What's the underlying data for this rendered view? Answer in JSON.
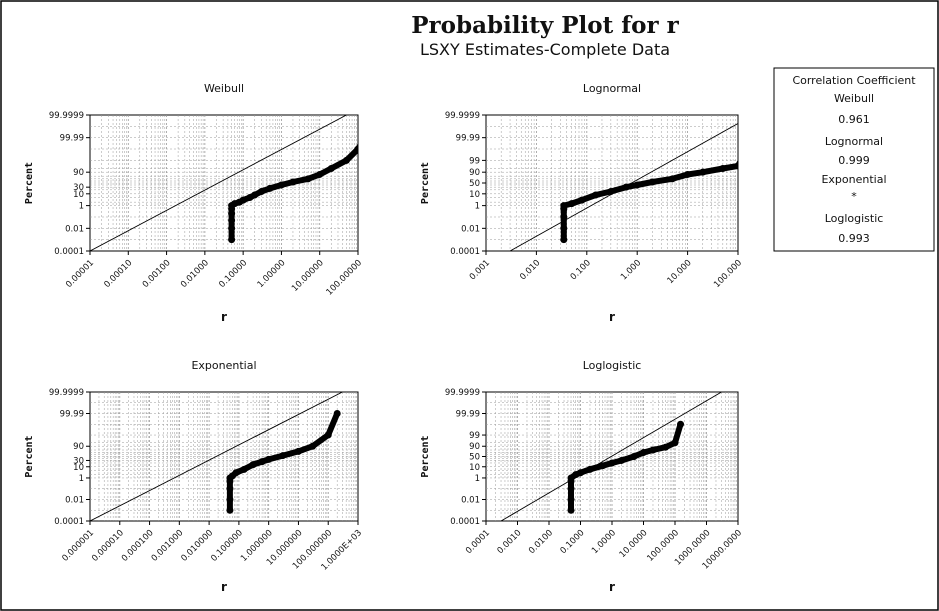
{
  "title": "Probability Plot for r",
  "subtitle": "LSXY Estimates-Complete Data",
  "legend": {
    "heading": "Correlation Coefficient",
    "entries": [
      {
        "name": "Weibull",
        "value": "0.961"
      },
      {
        "name": "Lognormal",
        "value": "0.999"
      },
      {
        "name": "Exponential",
        "value": "*"
      },
      {
        "name": "Loglogistic",
        "value": "0.993"
      }
    ]
  },
  "colors": {
    "points": "#000000",
    "line": "#000000",
    "grid": "#9a9a9a"
  },
  "chart_data": [
    {
      "type": "scatter",
      "title": "Weibull",
      "xlabel": "r",
      "ylabel": "Percent",
      "x_scale": "log",
      "xticks": [
        "0.00001",
        "0.00010",
        "0.00100",
        "0.01000",
        "0.10000",
        "1.00000",
        "10.00000",
        "100.00000"
      ],
      "yticks": [
        "0.0001",
        "0.01",
        "1",
        "10",
        "30",
        "90",
        "99.99",
        "99.9999"
      ],
      "fit_line": [
        [
          1e-05,
          0.0001
        ],
        [
          50,
          99.9999
        ]
      ],
      "points": [
        [
          0.05,
          0.001
        ],
        [
          0.05,
          0.01
        ],
        [
          0.05,
          0.05
        ],
        [
          0.05,
          0.2
        ],
        [
          0.05,
          0.5
        ],
        [
          0.05,
          1
        ],
        [
          0.06,
          1.5
        ],
        [
          0.08,
          2
        ],
        [
          0.1,
          3
        ],
        [
          0.15,
          5
        ],
        [
          0.2,
          8
        ],
        [
          0.3,
          15
        ],
        [
          0.5,
          25
        ],
        [
          1,
          40
        ],
        [
          2,
          55
        ],
        [
          5,
          70
        ],
        [
          10,
          85
        ],
        [
          20,
          95
        ],
        [
          50,
          99
        ],
        [
          100,
          99.9
        ],
        [
          150,
          99.99
        ]
      ]
    },
    {
      "type": "scatter",
      "title": "Lognormal",
      "xlabel": "r",
      "ylabel": "Percent",
      "x_scale": "log",
      "xticks": [
        "0.001",
        "0.010",
        "0.100",
        "1.000",
        "10.000",
        "100.000"
      ],
      "yticks": [
        "0.0001",
        "0.01",
        "1",
        "10",
        "50",
        "90",
        "99",
        "99.99",
        "99.9999"
      ],
      "fit_line": [
        [
          0.003,
          0.0001
        ],
        [
          200,
          99.9999
        ]
      ],
      "points": [
        [
          0.035,
          0.001
        ],
        [
          0.035,
          0.01
        ],
        [
          0.035,
          0.1
        ],
        [
          0.035,
          0.5
        ],
        [
          0.035,
          1
        ],
        [
          0.05,
          1.5
        ],
        [
          0.08,
          3
        ],
        [
          0.15,
          8
        ],
        [
          0.3,
          15
        ],
        [
          0.6,
          30
        ],
        [
          1,
          40
        ],
        [
          2,
          55
        ],
        [
          5,
          70
        ],
        [
          10,
          85
        ],
        [
          20,
          90
        ],
        [
          50,
          95
        ],
        [
          100,
          97
        ],
        [
          150,
          99.9
        ]
      ]
    },
    {
      "type": "scatter",
      "title": "Exponential",
      "xlabel": "r",
      "ylabel": "Percent",
      "x_scale": "log",
      "xticks": [
        "0.000001",
        "0.000010",
        "0.000100",
        "0.001000",
        "0.010000",
        "0.100000",
        "1.000000",
        "10.000000",
        "100.000000",
        "1.0000E+03"
      ],
      "yticks": [
        "0.0001",
        "0.01",
        "1",
        "10",
        "30",
        "90",
        "99.99",
        "99.9999"
      ],
      "fit_line": [
        [
          1e-06,
          0.0001
        ],
        [
          300,
          99.9999
        ]
      ],
      "points": [
        [
          0.05,
          0.001
        ],
        [
          0.05,
          0.01
        ],
        [
          0.05,
          0.1
        ],
        [
          0.05,
          0.5
        ],
        [
          0.05,
          1
        ],
        [
          0.06,
          1.5
        ],
        [
          0.08,
          3
        ],
        [
          0.15,
          6
        ],
        [
          0.3,
          15
        ],
        [
          0.6,
          25
        ],
        [
          1,
          35
        ],
        [
          3,
          55
        ],
        [
          10,
          75
        ],
        [
          30,
          90
        ],
        [
          100,
          99
        ],
        [
          200,
          99.99
        ]
      ]
    },
    {
      "type": "scatter",
      "title": "Loglogistic",
      "xlabel": "r",
      "ylabel": "Percent",
      "x_scale": "log",
      "xticks": [
        "0.0001",
        "0.0010",
        "0.0100",
        "0.1000",
        "1.0000",
        "10.0000",
        "100.0000",
        "1000.0000",
        "10000.0000"
      ],
      "yticks": [
        "0.0001",
        "0.01",
        "1",
        "10",
        "50",
        "90",
        "99",
        "99.99",
        "99.9999"
      ],
      "fit_line": [
        [
          0.0003,
          0.0001
        ],
        [
          3000,
          99.9999
        ]
      ],
      "points": [
        [
          0.05,
          0.001
        ],
        [
          0.05,
          0.01
        ],
        [
          0.05,
          0.1
        ],
        [
          0.05,
          0.5
        ],
        [
          0.05,
          1
        ],
        [
          0.07,
          2
        ],
        [
          0.1,
          3
        ],
        [
          0.2,
          6
        ],
        [
          0.5,
          12
        ],
        [
          1,
          20
        ],
        [
          2,
          30
        ],
        [
          5,
          50
        ],
        [
          10,
          70
        ],
        [
          20,
          80
        ],
        [
          50,
          88
        ],
        [
          100,
          95
        ],
        [
          150,
          99.9
        ]
      ]
    }
  ]
}
